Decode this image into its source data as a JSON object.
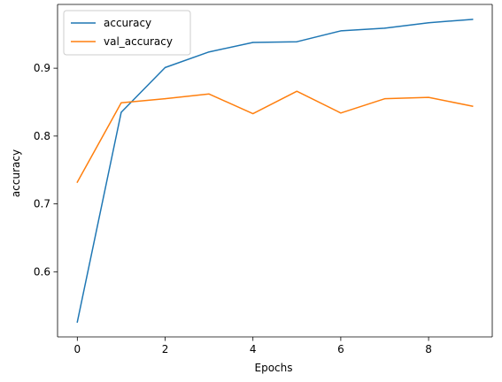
{
  "chart_data": {
    "type": "line",
    "title": "",
    "xlabel": "Epochs",
    "ylabel": "accuracy",
    "x": [
      0,
      1,
      2,
      3,
      4,
      5,
      6,
      7,
      8,
      9
    ],
    "series": [
      {
        "name": "accuracy",
        "color": "#1f77b4",
        "values": [
          0.526,
          0.835,
          0.901,
          0.924,
          0.938,
          0.939,
          0.955,
          0.959,
          0.967,
          0.972
        ]
      },
      {
        "name": "val_accuracy",
        "color": "#ff7f0e",
        "values": [
          0.732,
          0.849,
          0.855,
          0.862,
          0.833,
          0.866,
          0.834,
          0.855,
          0.857,
          0.844
        ]
      }
    ],
    "xlim": [
      -0.45,
      9.45
    ],
    "ylim": [
      0.504,
      0.994
    ],
    "x_ticks": [
      0,
      2,
      4,
      6,
      8
    ],
    "x_tick_labels": [
      "0",
      "2",
      "4",
      "6",
      "8"
    ],
    "y_ticks": [
      0.6,
      0.7,
      0.8,
      0.9
    ],
    "y_tick_labels": [
      "0.6",
      "0.7",
      "0.8",
      "0.9"
    ],
    "grid": false,
    "legend_position": "top-left"
  }
}
